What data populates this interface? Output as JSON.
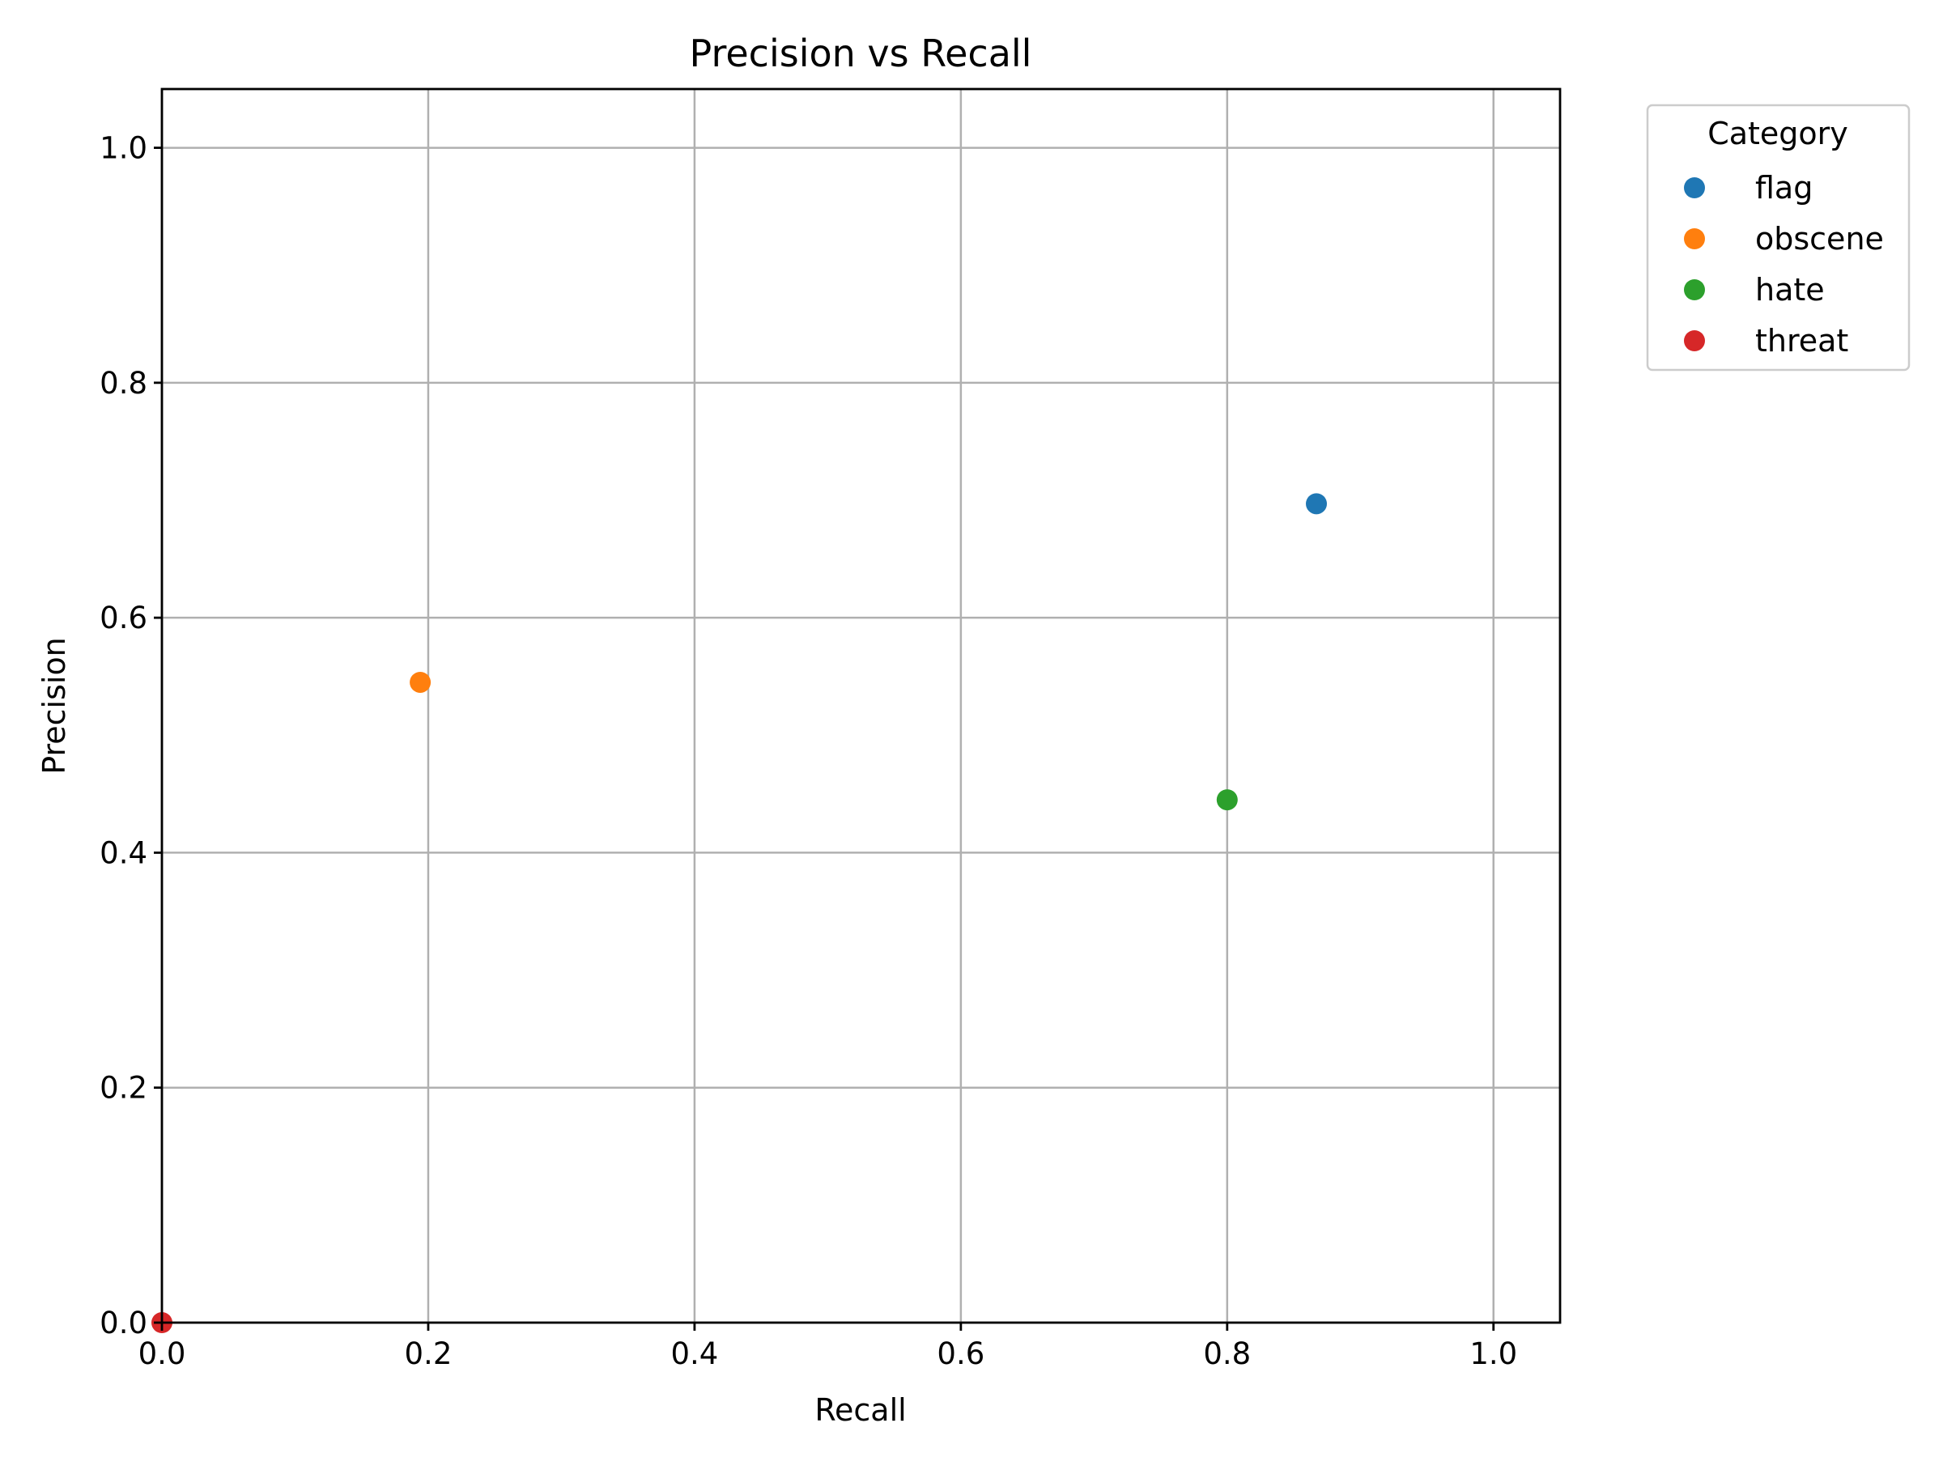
{
  "chart_data": {
    "type": "scatter",
    "title": "Precision vs Recall",
    "xlabel": "Recall",
    "ylabel": "Precision",
    "xlim": [
      0.0,
      1.05
    ],
    "ylim": [
      0.0,
      1.05
    ],
    "xticks": [
      "0.0",
      "0.2",
      "0.4",
      "0.6",
      "0.8",
      "1.0"
    ],
    "yticks": [
      "0.0",
      "0.2",
      "0.4",
      "0.6",
      "0.8",
      "1.0"
    ],
    "grid": true,
    "legend": {
      "title": "Category",
      "placement": "outside-top-right"
    },
    "series": [
      {
        "name": "flag",
        "color": "#1f77b4",
        "points": [
          {
            "x": 0.867,
            "y": 0.697
          }
        ]
      },
      {
        "name": "obscene",
        "color": "#ff7f0e",
        "points": [
          {
            "x": 0.194,
            "y": 0.545
          }
        ]
      },
      {
        "name": "hate",
        "color": "#2ca02c",
        "points": [
          {
            "x": 0.8,
            "y": 0.445
          }
        ]
      },
      {
        "name": "threat",
        "color": "#d62728",
        "points": [
          {
            "x": 0.0,
            "y": 0.0
          }
        ]
      }
    ]
  }
}
